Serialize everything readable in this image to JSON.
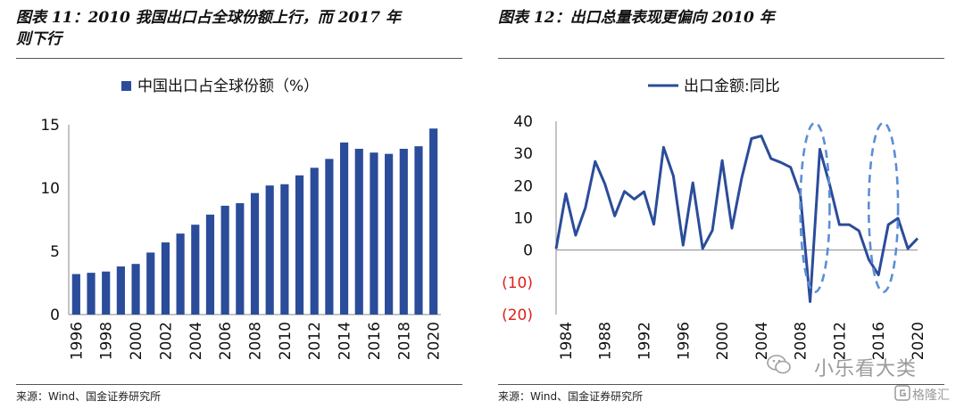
{
  "panels": [
    {
      "title_line1": "图表 11：2010 我国出口占全球份额上行，而 2017 年",
      "title_line2": "则下行",
      "source": "来源：Wind、国金证券研究所"
    },
    {
      "title_line1": "图表 12：出口总量表现更偏向 2010 年",
      "source": "来源：Wind、国金证券研究所"
    }
  ],
  "watermark": {
    "wechat_text": "小乐看大类",
    "brand_text": "格隆汇"
  },
  "colors": {
    "series": "#2b4c9a",
    "highlight": "#5b8ed6",
    "negative_label": "#e0201b"
  },
  "chart_data": [
    {
      "type": "bar",
      "legend": "中国出口占全球份额（%）",
      "legend_position": "top-center",
      "categories": [
        "1996",
        "1997",
        "1998",
        "1999",
        "2000",
        "2001",
        "2002",
        "2003",
        "2004",
        "2005",
        "2006",
        "2007",
        "2008",
        "2009",
        "2010",
        "2011",
        "2012",
        "2013",
        "2014",
        "2015",
        "2016",
        "2017",
        "2018",
        "2019",
        "2020"
      ],
      "values": [
        3.2,
        3.3,
        3.4,
        3.8,
        4.0,
        4.9,
        5.7,
        6.4,
        7.1,
        7.9,
        8.6,
        8.8,
        9.6,
        10.2,
        10.3,
        11.0,
        11.6,
        12.3,
        13.6,
        13.1,
        12.8,
        12.7,
        13.1,
        13.3,
        14.7
      ],
      "x_tick_labels": [
        "1996",
        "1998",
        "2000",
        "2002",
        "2004",
        "2006",
        "2008",
        "2010",
        "2012",
        "2014",
        "2016",
        "2018",
        "2020"
      ],
      "y_ticks": [
        "0",
        "5",
        "10",
        "15"
      ],
      "ylim": [
        0,
        15
      ],
      "grid": false
    },
    {
      "type": "line",
      "legend": "出口金额:同比",
      "legend_position": "top-center",
      "x": [
        1983,
        1984,
        1985,
        1986,
        1987,
        1988,
        1989,
        1990,
        1991,
        1992,
        1993,
        1994,
        1995,
        1996,
        1997,
        1998,
        1999,
        2000,
        2001,
        2002,
        2003,
        2004,
        2005,
        2006,
        2007,
        2008,
        2009,
        2010,
        2011,
        2012,
        2013,
        2014,
        2015,
        2016,
        2017,
        2018,
        2019,
        2020
      ],
      "values": [
        0.4,
        17.5,
        4.6,
        13.1,
        27.5,
        20.5,
        10.6,
        18.2,
        15.8,
        18.1,
        8.0,
        31.9,
        23.0,
        1.5,
        20.9,
        0.5,
        6.1,
        27.8,
        6.8,
        22.4,
        34.6,
        35.4,
        28.4,
        27.2,
        25.7,
        17.3,
        -16.0,
        31.3,
        20.3,
        7.9,
        7.9,
        6.0,
        -2.9,
        -7.7,
        7.9,
        9.9,
        0.5,
        3.6
      ],
      "x_tick_labels": [
        "1984",
        "1988",
        "1992",
        "1996",
        "2000",
        "2004",
        "2008",
        "2012",
        "2016",
        "2020"
      ],
      "y_ticks": [
        "40",
        "30",
        "20",
        "10",
        "0",
        "(10)",
        "(20)"
      ],
      "ylim": [
        -20,
        40
      ],
      "highlights": [
        [
          2008,
          2011
        ],
        [
          2015,
          2018
        ]
      ],
      "grid": false
    }
  ]
}
